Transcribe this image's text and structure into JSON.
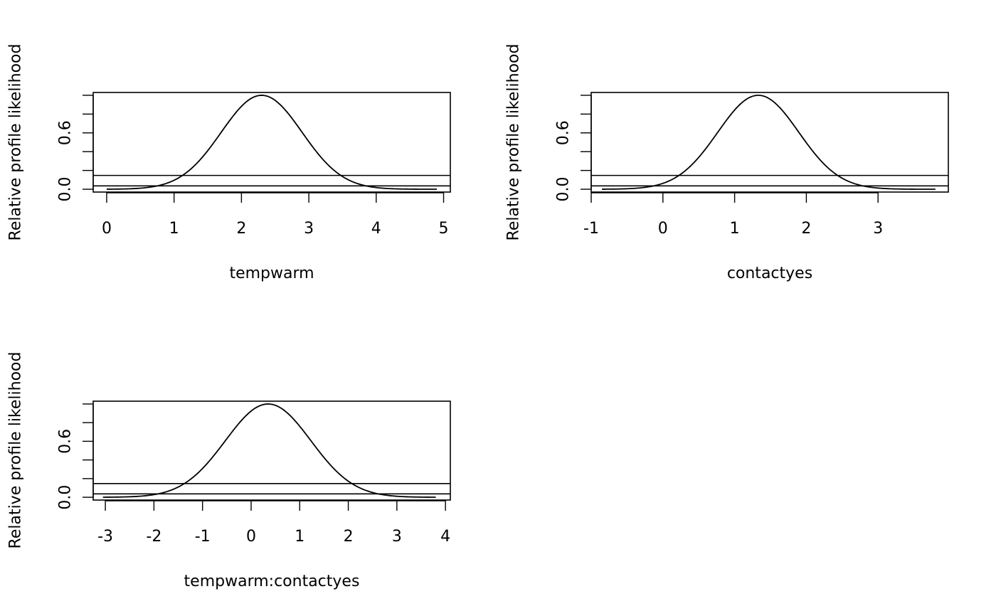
{
  "chart_data": [
    {
      "type": "line",
      "xlabel": "tempwarm",
      "ylabel": "Relative profile likelihood",
      "xlim": [
        -0.2,
        5.1
      ],
      "ylim": [
        -0.03,
        1.03
      ],
      "xticks": [
        0,
        1,
        2,
        3,
        4,
        5
      ],
      "xtick_labels": [
        "0",
        "1",
        "2",
        "3",
        "4",
        "5"
      ],
      "yticks": [
        0.0,
        0.2,
        0.4,
        0.6,
        0.8,
        1.0
      ],
      "ytick_labels": [
        "0.0",
        "",
        "",
        "0.6",
        "",
        ""
      ],
      "curve": {
        "x_start": 0.0,
        "x_end": 4.9,
        "peak": 2.3,
        "sd": 0.6
      },
      "hlines": [
        0.147,
        0.036
      ],
      "grid": false
    },
    {
      "type": "line",
      "xlabel": "contactyes",
      "ylabel": "Relative profile likelihood",
      "xlim": [
        -1.0,
        3.98
      ],
      "ylim": [
        -0.03,
        1.03
      ],
      "xticks": [
        -1,
        0,
        1,
        2,
        3
      ],
      "xtick_labels": [
        "-1",
        "0",
        "1",
        "2",
        "3"
      ],
      "yticks": [
        0.0,
        0.2,
        0.4,
        0.6,
        0.8,
        1.0
      ],
      "ytick_labels": [
        "0.0",
        "",
        "",
        "0.6",
        "",
        ""
      ],
      "curve": {
        "x_start": -0.85,
        "x_end": 3.8,
        "peak": 1.33,
        "sd": 0.565
      },
      "hlines": [
        0.147,
        0.036
      ],
      "grid": false
    },
    {
      "type": "line",
      "xlabel": "tempwarm:contactyes",
      "ylabel": "Relative profile likelihood",
      "xlim": [
        -3.25,
        4.1
      ],
      "ylim": [
        -0.03,
        1.03
      ],
      "xticks": [
        -3,
        -2,
        -1,
        0,
        1,
        2,
        3,
        4
      ],
      "xtick_labels": [
        "-3",
        "-2",
        "-1",
        "0",
        "1",
        "2",
        "3",
        "4"
      ],
      "yticks": [
        0.0,
        0.2,
        0.4,
        0.6,
        0.8,
        1.0
      ],
      "ytick_labels": [
        "0.0",
        "",
        "",
        "0.6",
        "",
        ""
      ],
      "curve": {
        "x_start": -3.05,
        "x_end": 3.8,
        "peak": 0.35,
        "sd": 0.88
      },
      "hlines": [
        0.147,
        0.036
      ],
      "grid": false
    }
  ]
}
